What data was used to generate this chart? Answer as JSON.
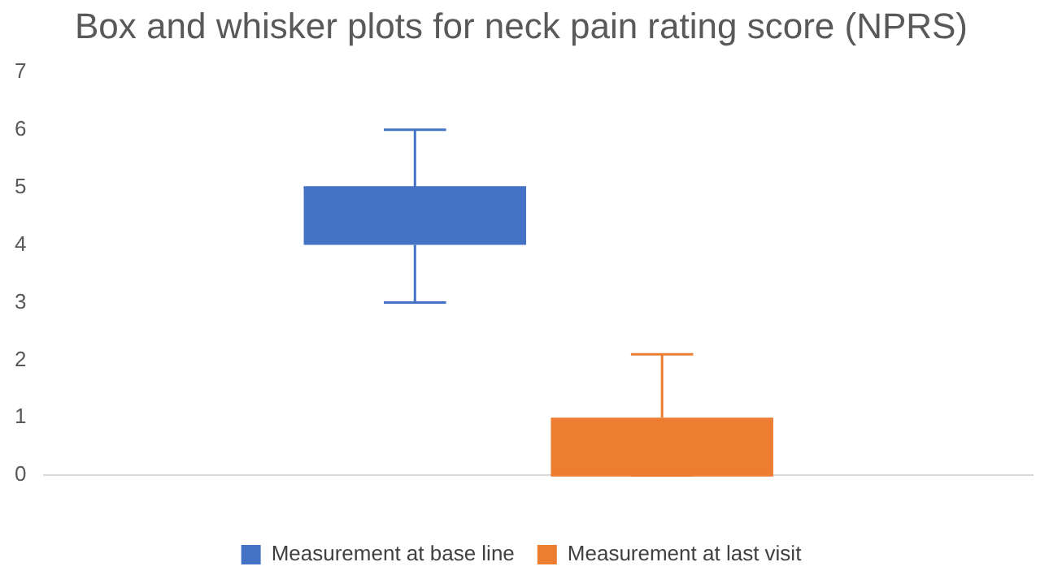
{
  "chart_data": {
    "type": "box",
    "title": "Box and whisker plots for neck pain rating score (NPRS)",
    "categories": [
      null
    ],
    "series": [
      {
        "name": "Measurement at base line",
        "color": "#4472c4",
        "boxes": [
          {
            "low": 3,
            "q1": 4,
            "median": 5,
            "q3": 5,
            "high": 6
          }
        ]
      },
      {
        "name": "Measurement at last visit",
        "color": "#ed7d31",
        "boxes": [
          {
            "low": 0,
            "q1": 0,
            "median": 0,
            "q3": 1,
            "high": 2.1
          }
        ]
      }
    ],
    "ylim": [
      0,
      7
    ],
    "yticks": [
      0,
      1,
      2,
      3,
      4,
      5,
      6,
      7
    ],
    "grid": false,
    "legend": "bottom"
  }
}
